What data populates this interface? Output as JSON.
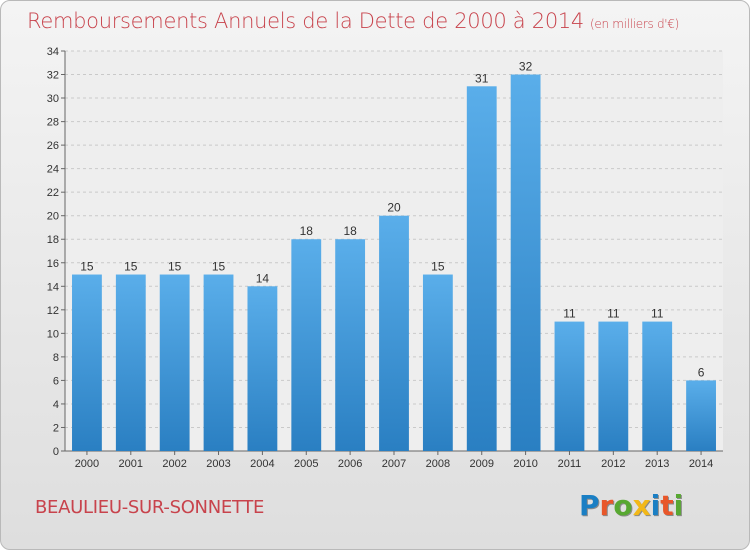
{
  "header": {
    "title": "Remboursements Annuels de la Dette de 2000 à 2014",
    "unit": "(en milliers d'€)"
  },
  "footer": {
    "town": "BEAULIEU-SUR-SONNETTE",
    "brand": [
      "P",
      "r",
      "o",
      "x",
      "i",
      "t",
      "i"
    ],
    "brand_colors": [
      "#1a7fc4",
      "#e8572a",
      "#58a832",
      "#f2b818",
      "#1a7fc4",
      "#e8572a",
      "#58a832"
    ]
  },
  "chart_data": {
    "type": "bar",
    "categories": [
      "2000",
      "2001",
      "2002",
      "2003",
      "2004",
      "2005",
      "2006",
      "2007",
      "2008",
      "2009",
      "2010",
      "2011",
      "2012",
      "2013",
      "2014"
    ],
    "values": [
      15,
      15,
      15,
      15,
      14,
      18,
      18,
      20,
      15,
      31,
      32,
      11,
      11,
      11,
      6
    ],
    "title": "Remboursements Annuels de la Dette de 2000 à 2014",
    "ylim": [
      0,
      34
    ],
    "yticks": [
      0,
      2,
      4,
      6,
      8,
      10,
      12,
      14,
      16,
      18,
      20,
      22,
      24,
      26,
      28,
      30,
      32,
      34
    ],
    "grid": true,
    "bar_color_top": "#5aaeea",
    "bar_color_bottom": "#2a7fc2"
  }
}
